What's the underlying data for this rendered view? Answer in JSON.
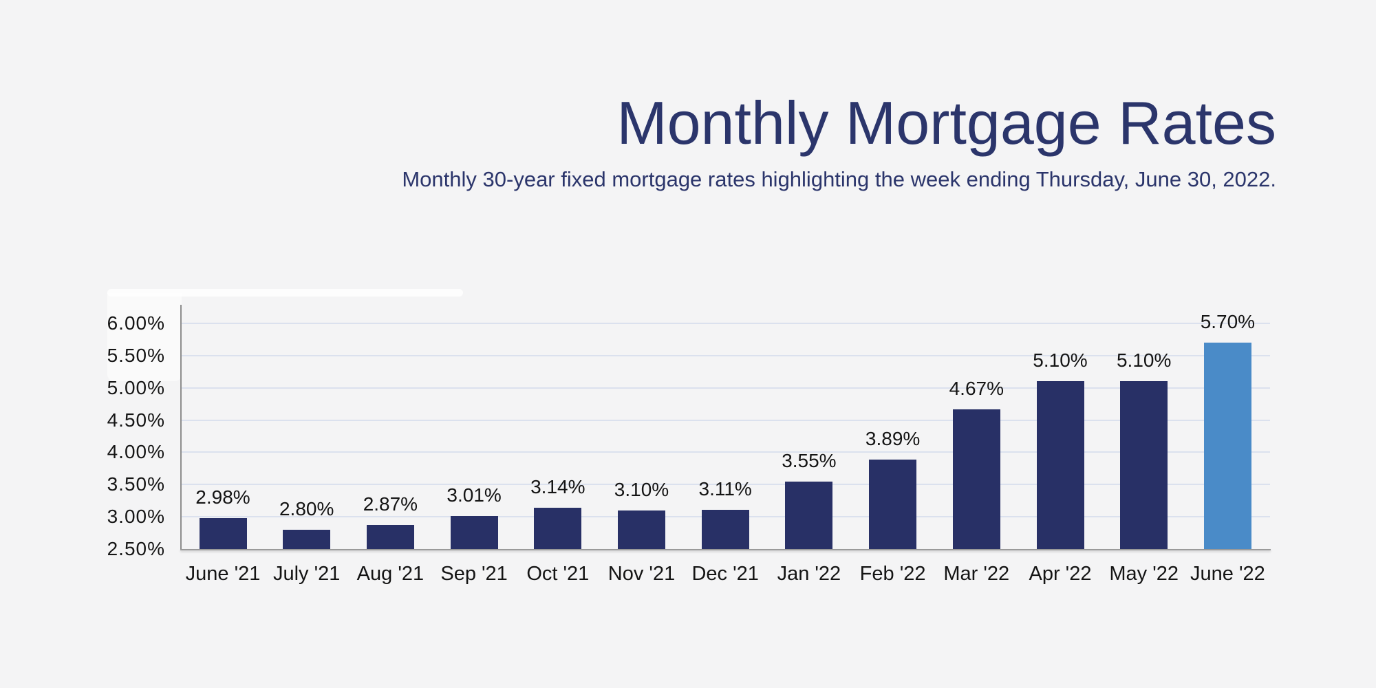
{
  "header": {
    "title": "Monthly Mortgage Rates",
    "subtitle": "Monthly 30-year fixed mortgage rates highlighting the week ending Thursday, June 30, 2022."
  },
  "colors": {
    "background": "#f4f4f5",
    "bar": "#283066",
    "highlight_bar": "#4a8bc8",
    "title_text": "#2b356b",
    "gridline": "#dbe1ee",
    "axis_line": "#9a9a9a",
    "tick_text": "#161616"
  },
  "chart_data": {
    "type": "bar",
    "title": "Monthly Mortgage Rates",
    "subtitle": "Monthly 30-year fixed mortgage rates highlighting the week ending Thursday, June 30, 2022.",
    "categories": [
      "June '21",
      "July '21",
      "Aug '21",
      "Sep '21",
      "Oct '21",
      "Nov '21",
      "Dec '21",
      "Jan '22",
      "Feb '22",
      "Mar '22",
      "Apr '22",
      "May '22",
      "June '22"
    ],
    "values": [
      2.98,
      2.8,
      2.87,
      3.01,
      3.14,
      3.1,
      3.11,
      3.55,
      3.89,
      4.67,
      5.1,
      5.1,
      5.7
    ],
    "value_labels": [
      "2.98%",
      "2.80%",
      "2.87%",
      "3.01%",
      "3.14%",
      "3.10%",
      "3.11%",
      "3.55%",
      "3.89%",
      "4.67%",
      "5.10%",
      "5.10%",
      "5.70%"
    ],
    "highlight_index": 12,
    "xlabel": "",
    "ylabel": "",
    "y_ticks": [
      "6.00%",
      "5.50%",
      "5.00%",
      "4.50%",
      "4.00%",
      "3.50%",
      "3.00%",
      "2.50%"
    ],
    "y_tick_values": [
      6.0,
      5.5,
      5.0,
      4.5,
      4.0,
      3.5,
      3.0,
      2.5
    ],
    "ylim": [
      2.5,
      6.3
    ],
    "grid": true,
    "legend": false
  }
}
